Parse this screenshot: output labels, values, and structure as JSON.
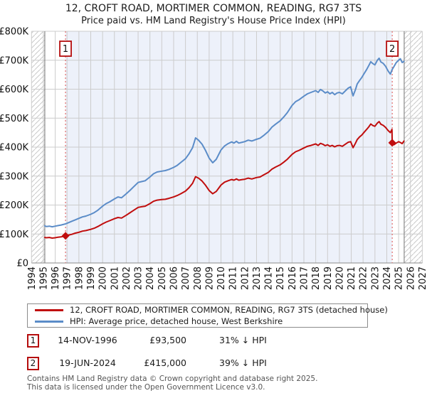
{
  "title": "12, CROFT ROAD, MORTIMER COMMON, READING, RG7 3TS",
  "subtitle": "Price paid vs. HM Land Registry's House Price Index (HPI)",
  "legend": [
    {
      "label": "12, CROFT ROAD, MORTIMER COMMON, READING, RG7 3TS (detached house)",
      "color": "#c00d0d"
    },
    {
      "label": "HPI: Average price, detached house, West Berkshire",
      "color": "#5b8cc8"
    }
  ],
  "transactions": [
    {
      "num": "1",
      "date": "14-NOV-1996",
      "price": "£93,500",
      "hpi_diff": "31% ↓ HPI"
    },
    {
      "num": "2",
      "date": "19-JUN-2024",
      "price": "£415,000",
      "hpi_diff": "39% ↓ HPI"
    }
  ],
  "footer": {
    "line1": "Contains HM Land Registry data © Crown copyright and database right 2025.",
    "line2": "This data is licensed under the Open Government Licence v3.0."
  },
  "chart_data": {
    "type": "line",
    "title": "Price paid vs. HM Land Registry's House Price Index (HPI)",
    "xlabel": "",
    "ylabel": "",
    "grid": true,
    "x_axis": {
      "min": 1994,
      "max": 2027,
      "tick_labels": [
        "1994",
        "1995",
        "1996",
        "1997",
        "1998",
        "1999",
        "2000",
        "2001",
        "2002",
        "2003",
        "2004",
        "2005",
        "2006",
        "2007",
        "2008",
        "2009",
        "2010",
        "2011",
        "2012",
        "2013",
        "2014",
        "2015",
        "2016",
        "2017",
        "2018",
        "2019",
        "2020",
        "2021",
        "2022",
        "2023",
        "2024",
        "2025",
        "2026",
        "2027"
      ]
    },
    "y_axis": {
      "min_k": 0,
      "max_k": 800,
      "tick_step_k": 100,
      "tick_labels": [
        "£0",
        "£100K",
        "£200K",
        "£300K",
        "£400K",
        "£500K",
        "£600K",
        "£700K",
        "£800K"
      ]
    },
    "series": [
      {
        "name": "HPI: Average price, detached house, West Berkshire",
        "color": "#5b8cc8",
        "units": "GBP thousands",
        "points": [
          [
            1995.12,
            128
          ],
          [
            1995.25,
            126
          ],
          [
            1995.5,
            127
          ],
          [
            1995.75,
            125
          ],
          [
            1996.0,
            127
          ],
          [
            1996.25,
            129
          ],
          [
            1996.5,
            131
          ],
          [
            1996.87,
            135
          ],
          [
            1997.1,
            139
          ],
          [
            1997.4,
            144
          ],
          [
            1997.7,
            149
          ],
          [
            1998.0,
            154
          ],
          [
            1998.3,
            159
          ],
          [
            1998.6,
            162
          ],
          [
            1999.0,
            168
          ],
          [
            1999.3,
            174
          ],
          [
            1999.6,
            182
          ],
          [
            2000.0,
            196
          ],
          [
            2000.3,
            205
          ],
          [
            2000.6,
            211
          ],
          [
            2001.0,
            221
          ],
          [
            2001.3,
            228
          ],
          [
            2001.6,
            225
          ],
          [
            2002.0,
            239
          ],
          [
            2002.3,
            250
          ],
          [
            2002.6,
            262
          ],
          [
            2003.0,
            278
          ],
          [
            2003.3,
            281
          ],
          [
            2003.6,
            284
          ],
          [
            2004.0,
            297
          ],
          [
            2004.3,
            308
          ],
          [
            2004.6,
            314
          ],
          [
            2005.0,
            317
          ],
          [
            2005.3,
            319
          ],
          [
            2005.6,
            323
          ],
          [
            2006.0,
            330
          ],
          [
            2006.3,
            337
          ],
          [
            2006.6,
            347
          ],
          [
            2007.0,
            360
          ],
          [
            2007.3,
            377
          ],
          [
            2007.6,
            398
          ],
          [
            2007.85,
            432
          ],
          [
            2008.1,
            424
          ],
          [
            2008.4,
            410
          ],
          [
            2008.7,
            388
          ],
          [
            2009.0,
            362
          ],
          [
            2009.3,
            346
          ],
          [
            2009.6,
            358
          ],
          [
            2009.8,
            374
          ],
          [
            2010.0,
            390
          ],
          [
            2010.3,
            404
          ],
          [
            2010.6,
            412
          ],
          [
            2010.9,
            418
          ],
          [
            2011.1,
            414
          ],
          [
            2011.3,
            420
          ],
          [
            2011.5,
            414
          ],
          [
            2011.8,
            417
          ],
          [
            2012.0,
            419
          ],
          [
            2012.3,
            424
          ],
          [
            2012.6,
            421
          ],
          [
            2013.0,
            427
          ],
          [
            2013.3,
            431
          ],
          [
            2013.6,
            440
          ],
          [
            2014.0,
            454
          ],
          [
            2014.3,
            469
          ],
          [
            2014.6,
            479
          ],
          [
            2015.0,
            491
          ],
          [
            2015.3,
            504
          ],
          [
            2015.6,
            519
          ],
          [
            2016.0,
            544
          ],
          [
            2016.3,
            557
          ],
          [
            2016.6,
            564
          ],
          [
            2017.0,
            576
          ],
          [
            2017.3,
            584
          ],
          [
            2017.6,
            589
          ],
          [
            2018.0,
            595
          ],
          [
            2018.2,
            589
          ],
          [
            2018.4,
            599
          ],
          [
            2018.6,
            594
          ],
          [
            2018.8,
            587
          ],
          [
            2019.0,
            591
          ],
          [
            2019.2,
            584
          ],
          [
            2019.4,
            589
          ],
          [
            2019.6,
            581
          ],
          [
            2019.8,
            587
          ],
          [
            2020.0,
            589
          ],
          [
            2020.25,
            584
          ],
          [
            2020.5,
            594
          ],
          [
            2020.75,
            604
          ],
          [
            2020.95,
            608
          ],
          [
            2021.15,
            577
          ],
          [
            2021.35,
            598
          ],
          [
            2021.5,
            618
          ],
          [
            2021.7,
            630
          ],
          [
            2021.9,
            641
          ],
          [
            2022.1,
            655
          ],
          [
            2022.3,
            668
          ],
          [
            2022.5,
            683
          ],
          [
            2022.65,
            695
          ],
          [
            2022.8,
            689
          ],
          [
            2023.0,
            684
          ],
          [
            2023.2,
            700
          ],
          [
            2023.35,
            707
          ],
          [
            2023.5,
            694
          ],
          [
            2023.7,
            689
          ],
          [
            2023.9,
            679
          ],
          [
            2024.1,
            664
          ],
          [
            2024.3,
            652
          ],
          [
            2024.46,
            668
          ],
          [
            2024.6,
            678
          ],
          [
            2024.8,
            692
          ],
          [
            2025.0,
            700
          ],
          [
            2025.15,
            705
          ],
          [
            2025.3,
            692
          ],
          [
            2025.45,
            696
          ]
        ]
      },
      {
        "name": "12, CROFT ROAD, MORTIMER COMMON, READING, RG7 3TS (detached house)",
        "color": "#c00d0d",
        "units": "GBP thousands",
        "points": [
          [
            1995.12,
            88
          ],
          [
            1995.25,
            87
          ],
          [
            1995.5,
            88
          ],
          [
            1995.75,
            86
          ],
          [
            1996.0,
            87
          ],
          [
            1996.25,
            89
          ],
          [
            1996.5,
            90
          ],
          [
            1996.87,
            93.5
          ],
          [
            1997.1,
            96
          ],
          [
            1997.4,
            99
          ],
          [
            1997.7,
            103
          ],
          [
            1998.0,
            106
          ],
          [
            1998.3,
            110
          ],
          [
            1998.6,
            112
          ],
          [
            1999.0,
            116
          ],
          [
            1999.3,
            120
          ],
          [
            1999.6,
            126
          ],
          [
            2000.0,
            135
          ],
          [
            2000.3,
            141
          ],
          [
            2000.6,
            146
          ],
          [
            2001.0,
            153
          ],
          [
            2001.3,
            157
          ],
          [
            2001.6,
            155
          ],
          [
            2002.0,
            165
          ],
          [
            2002.3,
            173
          ],
          [
            2002.6,
            181
          ],
          [
            2003.0,
            192
          ],
          [
            2003.3,
            194
          ],
          [
            2003.6,
            196
          ],
          [
            2004.0,
            205
          ],
          [
            2004.3,
            213
          ],
          [
            2004.6,
            217
          ],
          [
            2005.0,
            219
          ],
          [
            2005.3,
            220
          ],
          [
            2005.6,
            223
          ],
          [
            2006.0,
            228
          ],
          [
            2006.3,
            233
          ],
          [
            2006.6,
            239
          ],
          [
            2007.0,
            248
          ],
          [
            2007.3,
            260
          ],
          [
            2007.6,
            275
          ],
          [
            2007.85,
            298
          ],
          [
            2008.1,
            293
          ],
          [
            2008.4,
            283
          ],
          [
            2008.7,
            268
          ],
          [
            2009.0,
            250
          ],
          [
            2009.3,
            239
          ],
          [
            2009.6,
            247
          ],
          [
            2009.8,
            258
          ],
          [
            2010.0,
            269
          ],
          [
            2010.3,
            279
          ],
          [
            2010.6,
            284
          ],
          [
            2010.9,
            288
          ],
          [
            2011.1,
            286
          ],
          [
            2011.3,
            290
          ],
          [
            2011.5,
            286
          ],
          [
            2011.8,
            288
          ],
          [
            2012.0,
            289
          ],
          [
            2012.3,
            293
          ],
          [
            2012.6,
            290
          ],
          [
            2013.0,
            295
          ],
          [
            2013.3,
            297
          ],
          [
            2013.6,
            304
          ],
          [
            2014.0,
            313
          ],
          [
            2014.3,
            324
          ],
          [
            2014.6,
            331
          ],
          [
            2015.0,
            339
          ],
          [
            2015.3,
            348
          ],
          [
            2015.6,
            358
          ],
          [
            2016.0,
            375
          ],
          [
            2016.3,
            384
          ],
          [
            2016.6,
            389
          ],
          [
            2017.0,
            397
          ],
          [
            2017.3,
            403
          ],
          [
            2017.6,
            406
          ],
          [
            2018.0,
            411
          ],
          [
            2018.2,
            406
          ],
          [
            2018.4,
            413
          ],
          [
            2018.6,
            410
          ],
          [
            2018.8,
            405
          ],
          [
            2019.0,
            408
          ],
          [
            2019.2,
            403
          ],
          [
            2019.4,
            406
          ],
          [
            2019.6,
            401
          ],
          [
            2019.8,
            405
          ],
          [
            2020.0,
            406
          ],
          [
            2020.25,
            403
          ],
          [
            2020.5,
            410
          ],
          [
            2020.75,
            417
          ],
          [
            2020.95,
            419
          ],
          [
            2021.15,
            398
          ],
          [
            2021.35,
            413
          ],
          [
            2021.5,
            426
          ],
          [
            2021.7,
            435
          ],
          [
            2021.9,
            442
          ],
          [
            2022.1,
            452
          ],
          [
            2022.3,
            461
          ],
          [
            2022.5,
            471
          ],
          [
            2022.65,
            480
          ],
          [
            2022.8,
            475
          ],
          [
            2023.0,
            472
          ],
          [
            2023.2,
            483
          ],
          [
            2023.35,
            488
          ],
          [
            2023.5,
            479
          ],
          [
            2023.7,
            475
          ],
          [
            2023.9,
            468
          ],
          [
            2024.1,
            458
          ],
          [
            2024.3,
            450
          ],
          [
            2024.44,
            461
          ],
          [
            2024.46,
            415
          ],
          [
            2024.6,
            408
          ],
          [
            2024.8,
            414
          ],
          [
            2025.0,
            419
          ],
          [
            2025.15,
            416
          ],
          [
            2025.3,
            412
          ],
          [
            2025.45,
            421
          ]
        ]
      }
    ],
    "markers": [
      {
        "num": "1",
        "year": 1996.87,
        "value_k": 93.5,
        "date": "14-NOV-1996",
        "price": "£93,500"
      },
      {
        "num": "2",
        "year": 2024.46,
        "value_k": 415,
        "date": "19-JUN-2024",
        "price": "£415,000"
      }
    ],
    "shaded_region": {
      "from_year": 1996.87,
      "to_year": 2024.46
    },
    "hatched_regions": [
      [
        1994,
        1995.12
      ],
      [
        2025.47,
        2027
      ]
    ],
    "data_boundary_years": [
      1995.12,
      2025.47
    ],
    "colors": {
      "hpi_line": "#5b8cc8",
      "price_line": "#c00d0d",
      "marker_line": "#e06a6a",
      "marker_box": "#b50d0d",
      "grid": "#cccccc",
      "axis": "#8a8a8a",
      "shade": "#edf1fa",
      "hatch": "#c9c9c9",
      "boundary": "#8a8a8a"
    }
  }
}
